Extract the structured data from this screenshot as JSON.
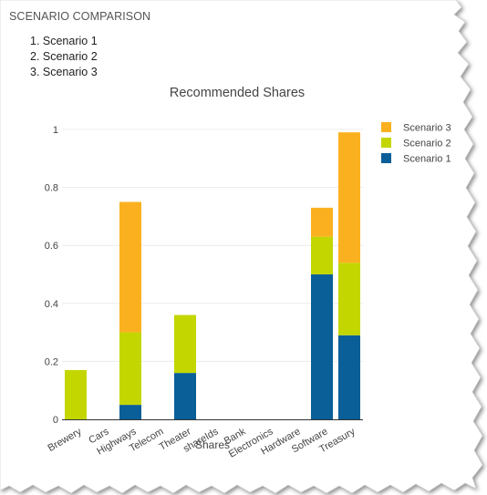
{
  "section": {
    "title": "SCENARIO COMPARISON",
    "scenarios": [
      "1. Scenario 1",
      "2. Scenario 2",
      "3. Scenario 3"
    ]
  },
  "colors": {
    "scenario_1": "#0a5f98",
    "scenario_2": "#c3d600",
    "scenario_3": "#fbb11f",
    "grid": "#ececec",
    "axis": "#333333",
    "label": "#444444"
  },
  "chart_data": {
    "type": "bar",
    "stacked": true,
    "title": "Recommended Shares",
    "xlabel": "Shares",
    "ylabel": "",
    "ylim": [
      0,
      1
    ],
    "yticks": [
      0,
      0.2,
      0.4,
      0.6,
      0.8,
      1
    ],
    "ytick_labels": [
      "0",
      "0.2",
      "0.4",
      "0.6",
      "0.8",
      "1"
    ],
    "grid": true,
    "legend_position": "top-right",
    "categories": [
      "Brewery",
      "Cars",
      "Highways",
      "Telecom",
      "Theater",
      "shareIds",
      "Bank",
      "Electronics",
      "Hardware",
      "Software",
      "Treasury"
    ],
    "series": [
      {
        "name": "Scenario 1",
        "color": "#0a5f98",
        "values": [
          0,
          0,
          0.05,
          0,
          0.16,
          0,
          0,
          0,
          0,
          0.5,
          0.29
        ]
      },
      {
        "name": "Scenario 2",
        "color": "#c3d600",
        "values": [
          0.17,
          0,
          0.25,
          0,
          0.2,
          0,
          0,
          0,
          0,
          0.13,
          0.25
        ]
      },
      {
        "name": "Scenario 3",
        "color": "#fbb11f",
        "values": [
          0,
          0,
          0.45,
          0,
          0,
          0,
          0,
          0,
          0,
          0.1,
          0.45
        ]
      }
    ]
  }
}
